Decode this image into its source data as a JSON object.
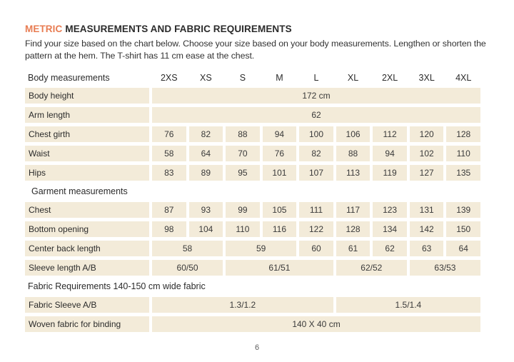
{
  "title": {
    "highlight": "METRIC",
    "rest": "MEASUREMENTS AND FABRIC REQUIREMENTS"
  },
  "intro": "Find your size based on the chart below. Choose your size based on your body measurements.  Lengthen or shorten the pattern at the hem. The T-shirt has 11 cm ease at the chest.",
  "page_number": "6",
  "colors": {
    "accent": "#E87C52",
    "cell_bg": "#F3EBD9",
    "text": "#2B2B2B"
  },
  "size_table": {
    "header": {
      "label": "Body measurements",
      "sizes": [
        "2XS",
        "XS",
        "S",
        "M",
        "L",
        "XL",
        "2XL",
        "3XL",
        "4XL"
      ]
    },
    "rows": [
      {
        "type": "data",
        "label": "Body height",
        "cells": [
          {
            "text": "172 cm",
            "span": 9
          }
        ]
      },
      {
        "type": "data",
        "label": "Arm length",
        "cells": [
          {
            "text": "62",
            "span": 9
          }
        ]
      },
      {
        "type": "data",
        "label": "Chest girth",
        "cells": [
          "76",
          "82",
          "88",
          "94",
          "100",
          "106",
          "112",
          "120",
          "128"
        ]
      },
      {
        "type": "data",
        "label": "Waist",
        "cells": [
          "58",
          "64",
          "70",
          "76",
          "82",
          "88",
          "94",
          "102",
          "110"
        ]
      },
      {
        "type": "data",
        "label": "Hips",
        "cells": [
          "83",
          "89",
          "95",
          "101",
          "107",
          "113",
          "119",
          "127",
          "135"
        ]
      },
      {
        "type": "section",
        "label": "Garment measurements",
        "indent": true
      },
      {
        "type": "data",
        "label": "Chest",
        "cells": [
          "87",
          "93",
          "99",
          "105",
          "111",
          "117",
          "123",
          "131",
          "139"
        ]
      },
      {
        "type": "data",
        "label": "Bottom opening",
        "cells": [
          "98",
          "104",
          "110",
          "116",
          "122",
          "128",
          "134",
          "142",
          "150"
        ]
      },
      {
        "type": "data",
        "label": "Center back length",
        "cells": [
          {
            "text": "58",
            "span": 2
          },
          {
            "text": "59",
            "span": 2
          },
          {
            "text": "60",
            "span": 1
          },
          {
            "text": "61",
            "span": 1
          },
          {
            "text": "62",
            "span": 1
          },
          {
            "text": "63",
            "span": 1
          },
          {
            "text": "64",
            "span": 1
          }
        ]
      },
      {
        "type": "data",
        "label": "Sleeve length A/B",
        "cells": [
          {
            "text": "60/50",
            "span": 2
          },
          {
            "text": "61/51",
            "span": 3
          },
          {
            "text": "62/52",
            "span": 2
          },
          {
            "text": "63/53",
            "span": 2
          }
        ]
      },
      {
        "type": "section",
        "label": "Fabric Requirements 140-150 cm wide fabric",
        "indent": false
      },
      {
        "type": "data",
        "label": "Fabric Sleeve A/B",
        "cells": [
          {
            "text": "1.3/1.2",
            "span": 5
          },
          {
            "text": "1.5/1.4",
            "span": 4
          }
        ]
      },
      {
        "type": "data",
        "label": "Woven fabric for binding",
        "cells": [
          {
            "text": "140 X 40 cm",
            "span": 9
          }
        ]
      }
    ]
  }
}
